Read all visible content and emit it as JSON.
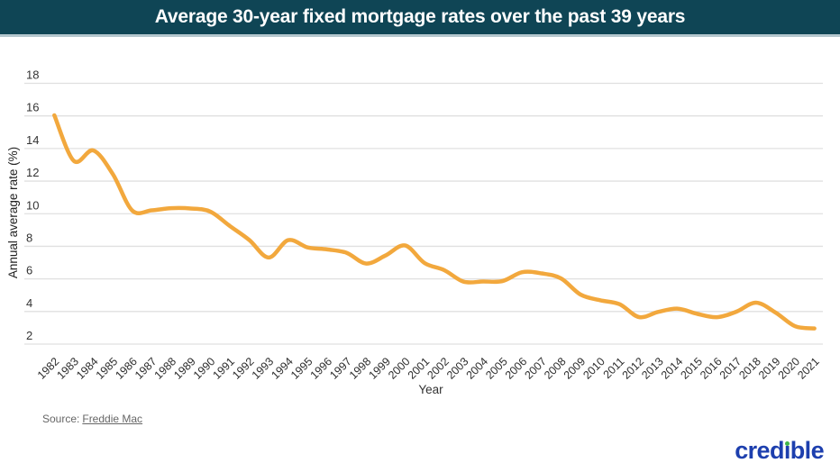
{
  "header": {
    "title": "Average 30-year fixed mortgage rates over the past 39 years"
  },
  "chart_data": {
    "type": "line",
    "x": [
      1982,
      1983,
      1984,
      1985,
      1986,
      1987,
      1988,
      1989,
      1990,
      1991,
      1992,
      1993,
      1994,
      1995,
      1996,
      1997,
      1998,
      1999,
      2000,
      2001,
      2002,
      2003,
      2004,
      2005,
      2006,
      2007,
      2008,
      2009,
      2010,
      2011,
      2012,
      2013,
      2014,
      2015,
      2016,
      2017,
      2018,
      2019,
      2020,
      2021
    ],
    "series": [
      {
        "name": "Average 30-year fixed mortgage rate",
        "values": [
          16.04,
          13.24,
          13.88,
          12.43,
          10.19,
          10.21,
          10.34,
          10.32,
          10.13,
          9.25,
          8.39,
          7.31,
          8.38,
          7.93,
          7.81,
          7.6,
          6.94,
          7.44,
          8.05,
          6.97,
          6.54,
          5.83,
          5.84,
          5.87,
          6.41,
          6.34,
          6.03,
          5.04,
          4.69,
          4.45,
          3.66,
          3.98,
          4.17,
          3.85,
          3.65,
          3.99,
          4.54,
          3.94,
          3.1,
          2.96
        ]
      }
    ],
    "xlabel": "Year",
    "ylabel": "Annual average rate (%)",
    "ylim": [
      2,
      18
    ],
    "yticks": [
      18,
      16,
      14,
      12,
      10,
      8,
      6,
      4,
      2
    ],
    "grid": true,
    "legend": "none",
    "smooth": true,
    "line_color": "#F2A83D"
  },
  "footer": {
    "source_prefix": "Source:",
    "source_link": "Freddie Mac",
    "logo": {
      "full": "credible",
      "pre": "cred",
      "i_dotless": "ı",
      "post": "ble"
    }
  },
  "colors": {
    "banner_bg": "#0F4555",
    "banner_border": "#B3C6CD",
    "line": "#F2A83D",
    "grid": "#E0E0E0",
    "tick_text": "#333333",
    "axis_title_text": "#222222",
    "source_text": "#666666",
    "logo_blue": "#1D3FAE",
    "logo_green": "#41B649"
  }
}
